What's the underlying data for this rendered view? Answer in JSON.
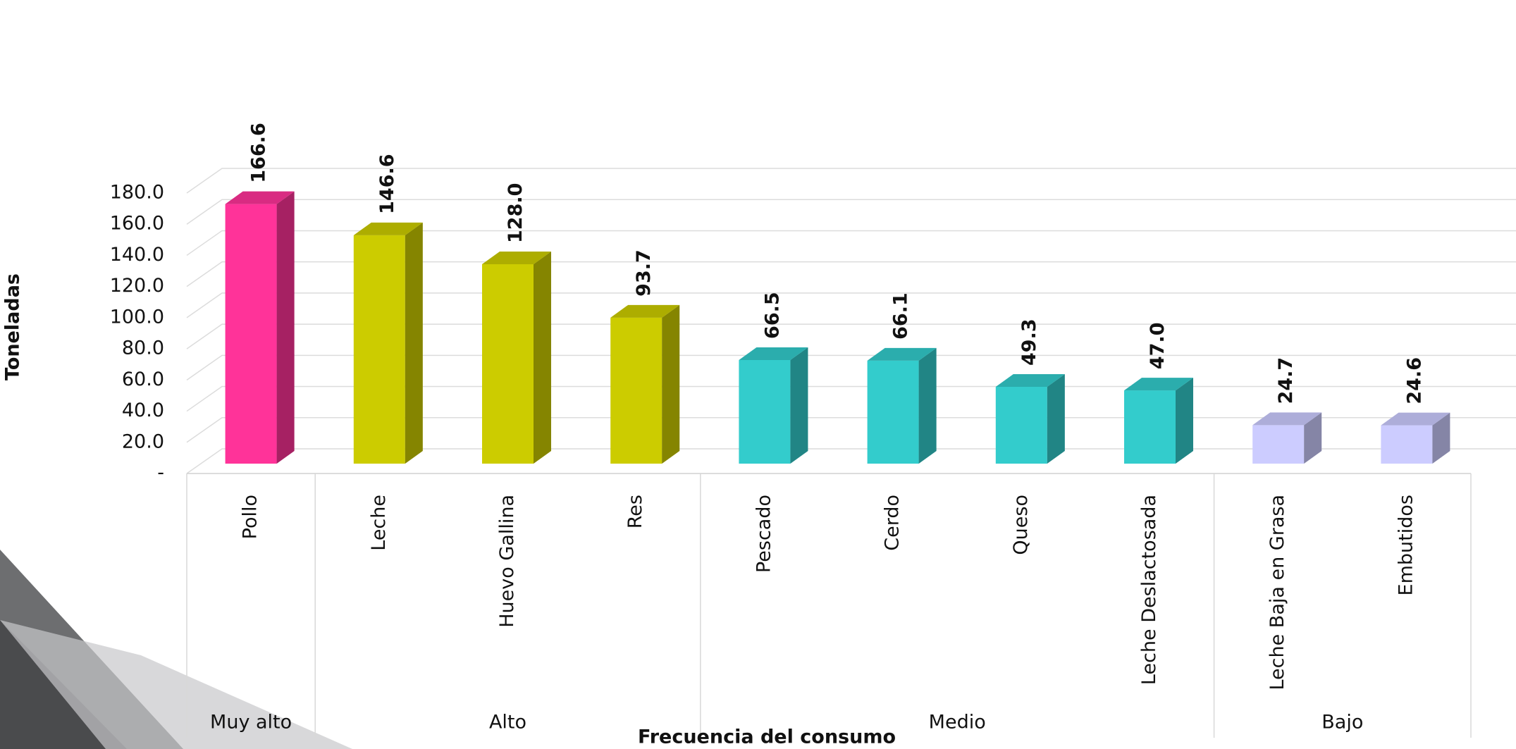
{
  "chart_data": {
    "type": "bar3d",
    "x_axis_label": "Frecuencia  del consumo",
    "y_axis_label": "Toneladas",
    "categories": [
      "Pollo",
      "Leche",
      "Huevo Gallina",
      "Res",
      "Pescado",
      "Cerdo",
      "Queso",
      "Leche Deslactosada",
      "Leche Baja en Grasa",
      "Embutidos"
    ],
    "values": [
      166.6,
      146.6,
      128.0,
      93.7,
      66.5,
      66.1,
      49.3,
      47.0,
      24.7,
      24.6
    ],
    "value_labels": [
      "166.6",
      "146.6",
      "128.0",
      "93.7",
      "66.5",
      "66.1",
      "49.3",
      "47.0",
      "24.7",
      "24.6"
    ],
    "colors": [
      "#ff3399",
      "#cccc00",
      "#cccc00",
      "#cccc00",
      "#33cccc",
      "#33cccc",
      "#33cccc",
      "#33cccc",
      "#ccccff",
      "#ccccff"
    ],
    "groups": [
      {
        "name": "Muy alto",
        "size": 1
      },
      {
        "name": "Alto",
        "size": 3
      },
      {
        "name": "Medio",
        "size": 4
      },
      {
        "name": "Bajo",
        "size": 2
      }
    ],
    "ylim": [
      0,
      180
    ],
    "yticks": [
      {
        "value": 0,
        "label": "-"
      },
      {
        "value": 20,
        "label": "20.0"
      },
      {
        "value": 40,
        "label": "40.0"
      },
      {
        "value": 60,
        "label": "60.0"
      },
      {
        "value": 80,
        "label": "80.0"
      },
      {
        "value": 100,
        "label": "100.0"
      },
      {
        "value": 120,
        "label": "120.0"
      },
      {
        "value": 140,
        "label": "140.0"
      },
      {
        "value": 160,
        "label": "160.0"
      },
      {
        "value": 180,
        "label": "180.0"
      }
    ],
    "grid": true
  }
}
